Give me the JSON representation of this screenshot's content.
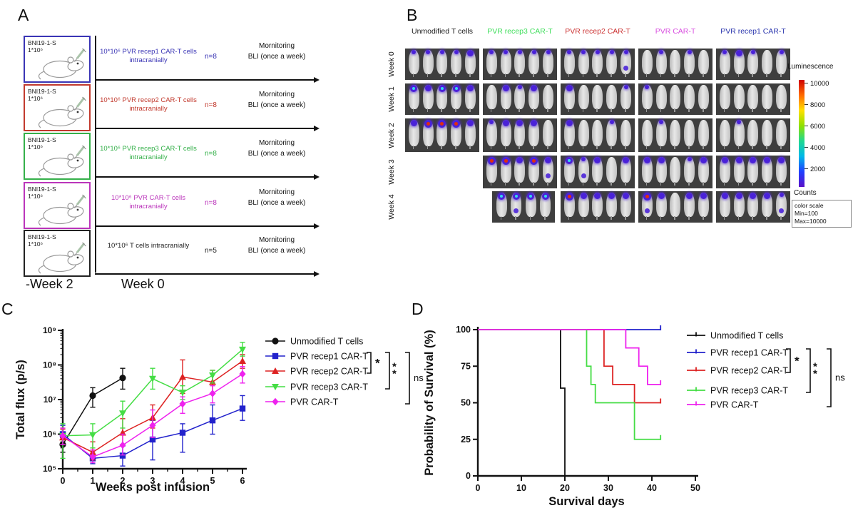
{
  "panelA": {
    "label": "A",
    "tumor_label": "BNI19-1-S",
    "tumor_dose": "1*10⁶",
    "timeline_start_label": "-Week 2",
    "timeline_zero_label": "Week 0",
    "monitor_line1": "Mornitoring",
    "monitor_line2": "BLI (once a week)",
    "rows": [
      {
        "color": "#3a35b5",
        "injection": "10*10⁶ PVR recep1 CAR-T cells intracranially",
        "n": "n=8"
      },
      {
        "color": "#c23a2e",
        "injection": "10*10⁶ PVR recep2 CAR-T cells intracranially",
        "n": "n=8"
      },
      {
        "color": "#35b04a",
        "injection": "10*10⁶ PVR recep3 CAR-T cells intracranially",
        "n": "n=8"
      },
      {
        "color": "#bb35bb",
        "injection": "10*10⁶ PVR CAR-T cells intracranially",
        "n": "n=8"
      },
      {
        "color": "#222222",
        "injection": "10*10⁶ T cells intracranially",
        "n": "n=5"
      }
    ]
  },
  "panelB": {
    "label": "B",
    "columns": [
      {
        "label": "Unmodified T cells",
        "color": "#1a1a1a"
      },
      {
        "label": "PVR recep3 CAR-T",
        "color": "#3ede5a"
      },
      {
        "label": "PVR recep2 CAR-T",
        "color": "#cc3333"
      },
      {
        "label": "PVR CAR-T",
        "color": "#d94fe0"
      },
      {
        "label": "PVR recep1 CAR-T",
        "color": "#2a35ad"
      }
    ],
    "row_labels": [
      "Week 0",
      "Week 1",
      "Week 2",
      "Week 3",
      "Week 4"
    ],
    "grid": [
      {
        "row": "Week 0",
        "cells": [
          [
            "1",
            "1",
            "1",
            "1",
            "2"
          ],
          [
            "1",
            "1",
            "1",
            "1",
            "1"
          ],
          [
            "1",
            "1",
            "1",
            "1",
            "1b"
          ],
          [
            "0",
            "1",
            "0",
            "1",
            "0"
          ],
          [
            "1",
            "2",
            "1",
            "0",
            "1"
          ]
        ]
      },
      {
        "row": "Week 1",
        "cells": [
          [
            "3",
            "2",
            "3",
            "3",
            "2"
          ],
          [
            "0",
            "2",
            "1",
            "2",
            "0"
          ],
          [
            "2",
            "0",
            "0",
            "0",
            "1"
          ],
          [
            "1",
            "0",
            "0",
            "0",
            "0"
          ],
          [
            "0",
            "0",
            "0",
            "0",
            "0"
          ]
        ]
      },
      {
        "row": "Week 2",
        "cells": [
          [
            "2",
            "4",
            "4",
            "4",
            "2"
          ],
          [
            "1",
            "2",
            "2",
            "2",
            "0"
          ],
          [
            "2",
            "0",
            "0",
            "1",
            "0"
          ],
          [
            "0",
            "1",
            "0",
            "0",
            "0"
          ],
          [
            "0",
            "1",
            "0",
            "0",
            "0"
          ]
        ]
      },
      {
        "row": "Week 3",
        "cells": [
          null,
          [
            "4",
            "4",
            "2",
            "4",
            "2b"
          ],
          [
            "3",
            "1b",
            "2",
            "0",
            "2"
          ],
          [
            "2",
            "2",
            "0",
            "1",
            "2"
          ],
          [
            "2",
            "2",
            "2",
            "2",
            "2"
          ]
        ]
      },
      {
        "row": "Week 4",
        "cells": [
          null,
          [
            "3",
            "3b",
            "3",
            "3"
          ],
          [
            "4",
            "2",
            "2",
            "2",
            "2"
          ],
          [
            "4b",
            "2",
            "0",
            "2",
            "2"
          ],
          [
            "2",
            "2",
            "2",
            "2",
            "1b"
          ]
        ]
      }
    ],
    "spot_colors": {
      "ring": "#4a22d8",
      "cyan_core": "#35d8ee",
      "red_core": "#e02d10"
    },
    "colorbar": {
      "title": "Luminescence",
      "ticks": [
        "10000",
        "8000",
        "6000",
        "4000",
        "2000"
      ],
      "unit": "Counts",
      "scale_lines": [
        "color scale",
        "Min=100",
        "Max=10000"
      ]
    }
  },
  "chart_data": [
    {
      "type": "line",
      "panel": "C",
      "panel_label": "C",
      "xlabel": "Weeks post infusion",
      "ylabel": "Total flux (p/s)",
      "yscale": "log",
      "ylim": [
        100000.0,
        1000000000.0
      ],
      "x": [
        0,
        1,
        2,
        3,
        4,
        5,
        6
      ],
      "x_tick_labels": [
        "0",
        "1",
        "2",
        "3",
        "4",
        "5",
        "6"
      ],
      "y_tick_labels": [
        "10⁵",
        "10⁶",
        "10⁷",
        "10⁸",
        "10⁹"
      ],
      "legend_position": "right",
      "grid": false,
      "series": [
        {
          "name": "Unmodified T cells",
          "color": "#111111",
          "marker": "circle",
          "values": [
            500000.0,
            13000000.0,
            42000000.0,
            null,
            null,
            null,
            null
          ],
          "err_lo": [
            300000.0,
            6000000.0,
            20000000.0,
            null,
            null,
            null,
            null
          ],
          "err_hi": [
            800000.0,
            22000000.0,
            80000000.0,
            null,
            null,
            null,
            null
          ]
        },
        {
          "name": "PVR recep1 CAR-T",
          "color": "#2222cc",
          "marker": "square",
          "values": [
            1000000.0,
            200000.0,
            240000.0,
            700000.0,
            1100000.0,
            2500000.0,
            5500000.0
          ],
          "err_lo": [
            500000.0,
            140000.0,
            120000.0,
            180000.0,
            300000.0,
            1000000.0,
            2500000.0
          ],
          "err_hi": [
            1800000.0,
            280000.0,
            450000.0,
            2500000.0,
            2000000.0,
            7000000.0,
            13000000.0
          ]
        },
        {
          "name": "PVR recep2 CAR-T",
          "color": "#dd2222",
          "marker": "triangle-up",
          "values": [
            800000.0,
            300000.0,
            1100000.0,
            3000000.0,
            45000000.0,
            32000000.0,
            130000000.0
          ],
          "err_lo": [
            500000.0,
            180000.0,
            500000.0,
            1500000.0,
            15000000.0,
            15000000.0,
            80000000.0
          ],
          "err_hi": [
            1400000.0,
            600000.0,
            2800000.0,
            7000000.0,
            140000000.0,
            70000000.0,
            200000000.0
          ]
        },
        {
          "name": "PVR recep3 CAR-T",
          "color": "#44dd44",
          "marker": "triangle-down",
          "values": [
            900000.0,
            950000.0,
            4000000.0,
            40000000.0,
            16000000.0,
            50000000.0,
            280000000.0
          ],
          "err_lo": [
            200000.0,
            400000.0,
            1500000.0,
            20000000.0,
            10000000.0,
            30000000.0,
            180000000.0
          ],
          "err_hi": [
            2000000.0,
            2000000.0,
            9000000.0,
            80000000.0,
            25000000.0,
            70000000.0,
            450000000.0
          ]
        },
        {
          "name": "PVR CAR-T",
          "color": "#ee22ee",
          "marker": "diamond",
          "values": [
            900000.0,
            220000.0,
            480000.0,
            1800000.0,
            7500000.0,
            15000000.0,
            55000000.0
          ],
          "err_lo": [
            500000.0,
            150000.0,
            250000.0,
            800000.0,
            4000000.0,
            8000000.0,
            30000000.0
          ],
          "err_hi": [
            1500000.0,
            350000.0,
            1000000.0,
            5000000.0,
            12000000.0,
            25000000.0,
            90000000.0
          ]
        }
      ],
      "significance": [
        {
          "from": "PVR recep1 CAR-T",
          "to": "PVR recep2 CAR-T",
          "label": "*"
        },
        {
          "from": "PVR recep1 CAR-T",
          "to": "PVR recep3 CAR-T",
          "label": "**"
        },
        {
          "from": "PVR recep1 CAR-T",
          "to": "PVR CAR-T",
          "label": "ns"
        }
      ]
    },
    {
      "type": "line",
      "subtype": "step-survival",
      "panel": "D",
      "panel_label": "D",
      "xlabel": "Survival days",
      "ylabel": "Probability of Survival (%)",
      "xlim": [
        0,
        50
      ],
      "ylim": [
        0,
        100
      ],
      "x_ticks": [
        0,
        10,
        20,
        30,
        40,
        50
      ],
      "y_ticks": [
        0,
        25,
        50,
        75,
        100
      ],
      "legend_position": "right",
      "grid": false,
      "series": [
        {
          "name": "Unmodified T cells",
          "color": "#111111",
          "points": [
            [
              0,
              100
            ],
            [
              19,
              100
            ],
            [
              19,
              60
            ],
            [
              20,
              60
            ],
            [
              20,
              0
            ]
          ],
          "censor": []
        },
        {
          "name": "PVR recep1 CAR-T",
          "color": "#2222cc",
          "points": [
            [
              0,
              100
            ],
            [
              42,
              100
            ]
          ],
          "censor": [
            [
              42,
              100
            ]
          ]
        },
        {
          "name": "PVR recep2 CAR-T",
          "color": "#dd2222",
          "points": [
            [
              0,
              100
            ],
            [
              29,
              100
            ],
            [
              29,
              75
            ],
            [
              31,
              75
            ],
            [
              31,
              62.5
            ],
            [
              36,
              62.5
            ],
            [
              36,
              50
            ],
            [
              42,
              50
            ]
          ],
          "censor": [
            [
              42,
              50
            ]
          ]
        },
        {
          "name": "PVR recep3 CAR-T",
          "color": "#44dd44",
          "points": [
            [
              0,
              100
            ],
            [
              25,
              100
            ],
            [
              25,
              75
            ],
            [
              26,
              75
            ],
            [
              26,
              62.5
            ],
            [
              27,
              62.5
            ],
            [
              27,
              50
            ],
            [
              36,
              50
            ],
            [
              36,
              25
            ],
            [
              42,
              25
            ]
          ],
          "censor": [
            [
              42,
              25
            ]
          ]
        },
        {
          "name": "PVR CAR-T",
          "color": "#ee22ee",
          "points": [
            [
              0,
              100
            ],
            [
              34,
              100
            ],
            [
              34,
              87.5
            ],
            [
              37,
              87.5
            ],
            [
              37,
              75
            ],
            [
              39,
              75
            ],
            [
              39,
              62.5
            ],
            [
              42,
              62.5
            ]
          ],
          "censor": [
            [
              42,
              62.5
            ]
          ]
        }
      ],
      "significance": [
        {
          "from": "PVR recep1 CAR-T",
          "to": "PVR recep2 CAR-T",
          "label": "*"
        },
        {
          "from": "PVR recep1 CAR-T",
          "to": "PVR recep3 CAR-T",
          "label": "**"
        },
        {
          "from": "PVR recep1 CAR-T",
          "to": "PVR CAR-T",
          "label": "ns"
        }
      ]
    }
  ]
}
